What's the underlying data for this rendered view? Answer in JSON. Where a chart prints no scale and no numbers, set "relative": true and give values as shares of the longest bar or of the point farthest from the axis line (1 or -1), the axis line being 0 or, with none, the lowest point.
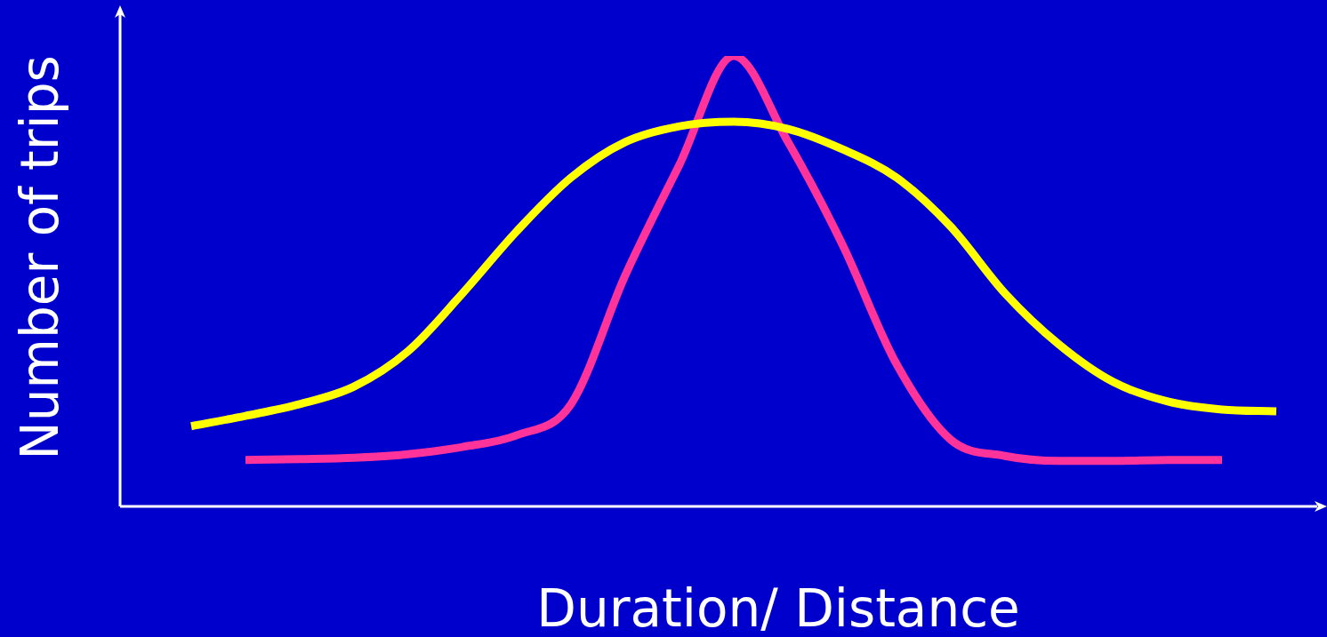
{
  "chart_data": {
    "type": "line",
    "relative": true,
    "xlabel": "Duration/ Distance",
    "ylabel": "Number of trips",
    "legend": false,
    "marker": "none",
    "categories": [
      null,
      null,
      null,
      null,
      null,
      null,
      null,
      null,
      null,
      null,
      null,
      null,
      null,
      null,
      null,
      null,
      null,
      null,
      null,
      null,
      null
    ],
    "series": [
      {
        "color": "#ffff00",
        "values": [
          0.178,
          0.201,
          0.227,
          0.266,
          0.345,
          0.473,
          0.611,
          0.73,
          0.809,
          0.844,
          0.854,
          0.838,
          0.793,
          0.73,
          0.621,
          0.473,
          0.359,
          0.276,
          0.233,
          0.215,
          0.211
        ]
      },
      {
        "color": "#ff3399",
        "values": [
          null,
          0.103,
          0.105,
          0.108,
          0.116,
          0.132,
          0.158,
          0.227,
          0.513,
          0.759,
          1.0,
          0.809,
          0.582,
          0.316,
          0.148,
          0.112,
          0.101,
          0.101,
          0.103,
          0.103,
          null
        ]
      }
    ]
  }
}
